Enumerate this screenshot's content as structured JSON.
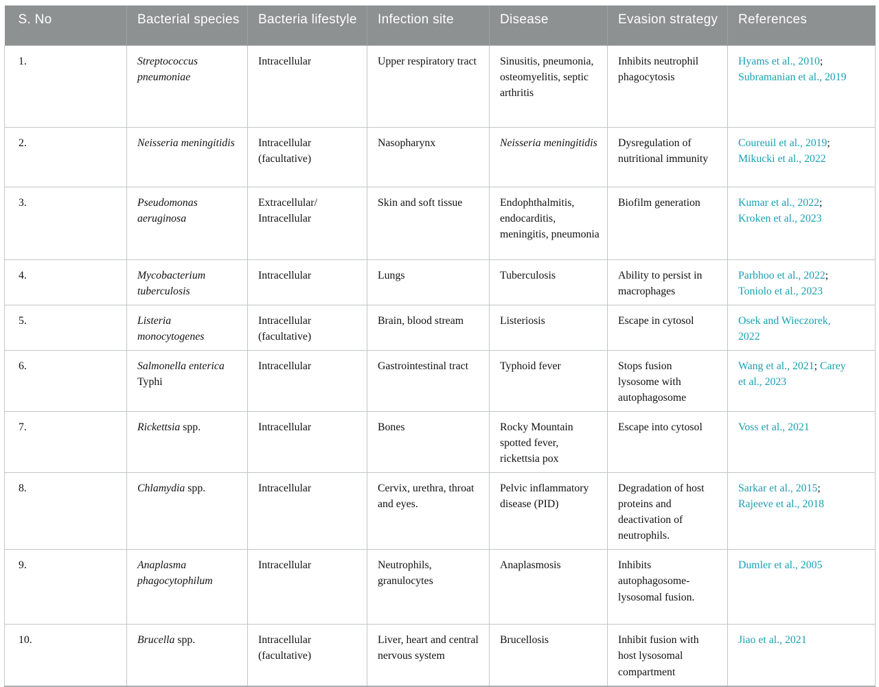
{
  "table": {
    "colors": {
      "header_bg": "#8d9192",
      "header_text": "#ffffff",
      "link": "#1aa0b2",
      "border": "#c1c5c6",
      "text": "#111111"
    },
    "columns": [
      {
        "label": "S. No"
      },
      {
        "label": "Bacterial species"
      },
      {
        "label": "Bacteria lifestyle"
      },
      {
        "label": "Infection site"
      },
      {
        "label": "Disease"
      },
      {
        "label": "Evasion strategy"
      },
      {
        "label": "References"
      }
    ],
    "rows": [
      {
        "sno": "1.",
        "species": [
          {
            "t": "Streptococcus pneumoniae",
            "i": true
          }
        ],
        "lifestyle": "Intracellular",
        "site": "Upper respiratory tract",
        "disease": [
          {
            "t": "Sinusitis, pneumonia, osteomyelitis, septic arthritis",
            "i": false
          }
        ],
        "evasion": "Inhibits neutrophil phagocytosis",
        "references": [
          "Hyams et al., 2010",
          "Subramanian et al., 2019"
        ]
      },
      {
        "sno": "2.",
        "species": [
          {
            "t": "Neisseria meningitidis",
            "i": true
          }
        ],
        "lifestyle": "Intracellular (facultative)",
        "site": "Nasopharynx",
        "disease": [
          {
            "t": "Neisseria meningitidis",
            "i": true
          }
        ],
        "evasion": "Dysregulation of nutritional immunity",
        "references": [
          "Coureuil et al., 2019",
          "Mikucki et al., 2022"
        ]
      },
      {
        "sno": "3.",
        "species": [
          {
            "t": "Pseudomonas aeruginosa",
            "i": true
          }
        ],
        "lifestyle": "Extracellular/ Intracellular",
        "site": "Skin and soft tissue",
        "disease": [
          {
            "t": "Endophthalmitis, endocarditis, meningitis, pneumonia",
            "i": false
          }
        ],
        "evasion": "Biofilm generation",
        "references": [
          "Kumar et al., 2022",
          "Kroken et al., 2023"
        ]
      },
      {
        "sno": "4.",
        "species": [
          {
            "t": "Mycobacterium tuberculosis",
            "i": true
          }
        ],
        "lifestyle": "Intracellular",
        "site": "Lungs",
        "disease": [
          {
            "t": "Tuberculosis",
            "i": false
          }
        ],
        "evasion": "Ability to persist in macrophages",
        "references": [
          "Parbhoo et al., 2022",
          "Toniolo et al., 2023"
        ]
      },
      {
        "sno": "5.",
        "species": [
          {
            "t": "Listeria monocytogenes",
            "i": true
          }
        ],
        "lifestyle": "Intracellular (facultative)",
        "site": "Brain, blood stream",
        "disease": [
          {
            "t": "Listeriosis",
            "i": false
          }
        ],
        "evasion": "Escape in cytosol",
        "references": [
          "Osek and Wieczorek, 2022"
        ]
      },
      {
        "sno": "6.",
        "species": [
          {
            "t": "Salmonella enterica",
            "i": true
          },
          {
            "t": " Typhi",
            "i": false
          }
        ],
        "lifestyle": "Intracellular",
        "site": "Gastrointestinal tract",
        "disease": [
          {
            "t": "Typhoid fever",
            "i": false
          }
        ],
        "evasion": "Stops fusion lysosome with autophagosome",
        "references": [
          "Wang et al., 2021",
          "Carey et al., 2023"
        ]
      },
      {
        "sno": "7.",
        "species": [
          {
            "t": "Rickettsia",
            "i": true
          },
          {
            "t": " spp.",
            "i": false
          }
        ],
        "lifestyle": "Intracellular",
        "site": "Bones",
        "disease": [
          {
            "t": "Rocky Mountain spotted fever, rickettsia pox",
            "i": false
          }
        ],
        "evasion": "Escape into cytosol",
        "references": [
          "Voss et al., 2021"
        ]
      },
      {
        "sno": "8.",
        "species": [
          {
            "t": "Chlamydia",
            "i": true
          },
          {
            "t": " spp.",
            "i": false
          }
        ],
        "lifestyle": "Intracellular",
        "site": "Cervix, urethra, throat and eyes.",
        "disease": [
          {
            "t": "Pelvic inflammatory disease (PID)",
            "i": false
          }
        ],
        "evasion": "Degradation of host proteins and deactivation of neutrophils.",
        "references": [
          "Sarkar et al., 2015",
          "Rajeeve et al., 2018"
        ]
      },
      {
        "sno": "9.",
        "species": [
          {
            "t": "Anaplasma phagocytophilum",
            "i": true
          }
        ],
        "lifestyle": "Intracellular",
        "site": "Neutrophils, granulocytes",
        "disease": [
          {
            "t": "Anaplasmosis",
            "i": false
          }
        ],
        "evasion": "Inhibits autophagosome-lysosomal fusion.",
        "references": [
          "Dumler et al., 2005"
        ]
      },
      {
        "sno": "10.",
        "species": [
          {
            "t": "Brucella",
            "i": true
          },
          {
            "t": " spp.",
            "i": false
          }
        ],
        "lifestyle": "Intracellular (facultative)",
        "site": "Liver, heart and central nervous system",
        "disease": [
          {
            "t": "Brucellosis",
            "i": false
          }
        ],
        "evasion": "Inhibit fusion with host lysosomal compartment",
        "references": [
          "Jiao et al., 2021"
        ]
      }
    ]
  }
}
